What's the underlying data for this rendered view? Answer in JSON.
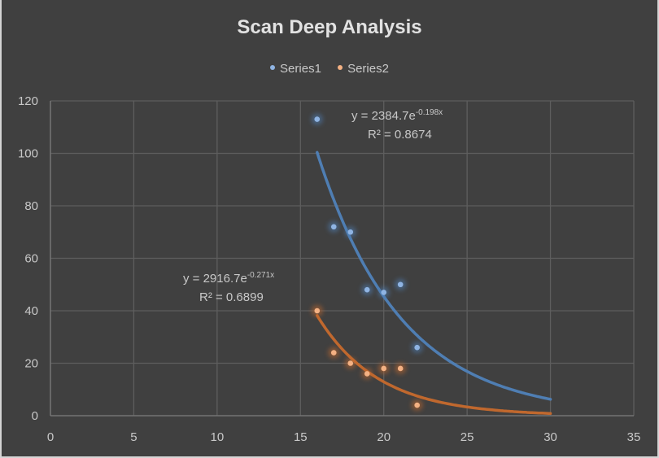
{
  "chart_data": {
    "type": "scatter",
    "title": "Scan Deep Analysis",
    "xlabel": "",
    "ylabel": "",
    "xlim": [
      0,
      35
    ],
    "ylim": [
      0,
      120
    ],
    "x_ticks": [
      "0",
      "5",
      "10",
      "15",
      "20",
      "25",
      "30",
      "35"
    ],
    "y_ticks": [
      "0",
      "20",
      "40",
      "60",
      "80",
      "100",
      "120"
    ],
    "grid": true,
    "legend_position": "top",
    "series": [
      {
        "name": "Series1",
        "color": "#8fb4e3",
        "trend_color": "#4f7eb3",
        "x": [
          16,
          17,
          18,
          19,
          20,
          21,
          22
        ],
        "y": [
          113,
          72,
          70,
          48,
          47,
          50,
          26
        ],
        "trendline": {
          "type": "exponential",
          "a": 2384.7,
          "b": -0.198,
          "x_range": [
            16,
            30
          ],
          "equation": "y = 2384.7e",
          "exponent": "-0.198x",
          "r2_label": "R² = 0.8674"
        }
      },
      {
        "name": "Series2",
        "color": "#f4b183",
        "trend_color": "#c0682e",
        "x": [
          16,
          17,
          18,
          19,
          20,
          21,
          22
        ],
        "y": [
          40,
          24,
          20,
          16,
          18,
          18,
          4
        ],
        "trendline": {
          "type": "exponential",
          "a": 2916.7,
          "b": -0.271,
          "x_range": [
            16,
            30
          ],
          "equation": "y = 2916.7e",
          "exponent": "-0.271x",
          "r2_label": "R² = 0.6899"
        }
      }
    ]
  }
}
